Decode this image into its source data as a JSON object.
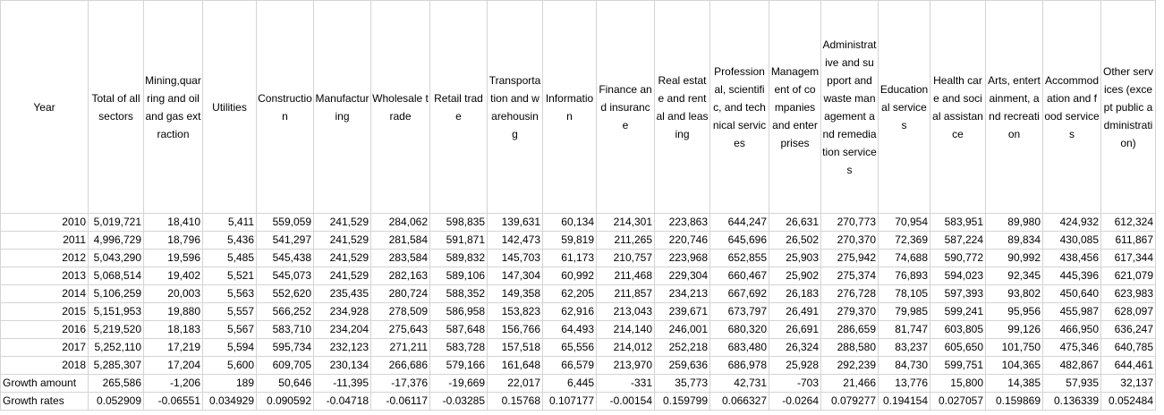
{
  "columns": [
    "Year",
    "Total of all sectors",
    "Mining,quarring and oil and gas extraction",
    "Utilities",
    "Construction",
    "Manufacturing",
    "Wholesale trade",
    "Retail trade",
    "Transportation and warehousing",
    "Information",
    "Finance and insurance",
    "Real estate and rental and leasing",
    "Professional, scientific, and technical services",
    "Management of companies and enterprises",
    "Administrative and support and waste management and remediation services",
    "Educational services",
    "Health care and social assistance",
    "Arts, entertainment, and recreation",
    "Accommodation and food services",
    "Other services (except public administration)"
  ],
  "rows": [
    [
      "2010",
      "5,019,721",
      "18,410",
      "5,411",
      "559,059",
      "241,529",
      "284,062",
      "598,835",
      "139,631",
      "60,134",
      "214,301",
      "223,863",
      "644,247",
      "26,631",
      "270,773",
      "70,954",
      "583,951",
      "89,980",
      "424,932",
      "612,324"
    ],
    [
      "2011",
      "4,996,729",
      "18,796",
      "5,436",
      "541,297",
      "241,529",
      "281,584",
      "591,871",
      "142,473",
      "59,819",
      "211,265",
      "220,746",
      "645,696",
      "26,502",
      "270,370",
      "72,369",
      "587,224",
      "89,834",
      "430,085",
      "611,867"
    ],
    [
      "2012",
      "5,043,290",
      "19,596",
      "5,485",
      "545,438",
      "241,529",
      "283,584",
      "589,832",
      "145,703",
      "61,173",
      "210,757",
      "223,968",
      "652,855",
      "25,903",
      "275,942",
      "74,688",
      "590,772",
      "90,992",
      "438,456",
      "617,344"
    ],
    [
      "2013",
      "5,068,514",
      "19,402",
      "5,521",
      "545,073",
      "241,529",
      "282,163",
      "589,106",
      "147,304",
      "60,992",
      "211,468",
      "229,304",
      "660,467",
      "25,902",
      "275,374",
      "76,893",
      "594,023",
      "92,345",
      "445,396",
      "621,079"
    ],
    [
      "2014",
      "5,106,259",
      "20,003",
      "5,563",
      "552,620",
      "235,435",
      "280,724",
      "588,352",
      "149,358",
      "62,205",
      "211,857",
      "234,213",
      "667,692",
      "26,183",
      "276,728",
      "78,105",
      "597,393",
      "93,802",
      "450,640",
      "623,983"
    ],
    [
      "2015",
      "5,151,953",
      "19,880",
      "5,557",
      "566,252",
      "234,928",
      "278,509",
      "586,958",
      "153,823",
      "62,916",
      "213,043",
      "239,671",
      "673,797",
      "26,491",
      "279,370",
      "79,985",
      "599,241",
      "95,956",
      "455,987",
      "628,097"
    ],
    [
      "2016",
      "5,219,520",
      "18,183",
      "5,567",
      "583,710",
      "234,204",
      "275,643",
      "587,648",
      "156,766",
      "64,493",
      "214,140",
      "246,001",
      "680,320",
      "26,691",
      "286,659",
      "81,747",
      "603,805",
      "99,126",
      "466,950",
      "636,247"
    ],
    [
      "2017",
      "5,252,110",
      "17,219",
      "5,594",
      "595,734",
      "232,123",
      "271,211",
      "583,728",
      "157,518",
      "65,556",
      "214,012",
      "252,218",
      "683,480",
      "26,324",
      "288,580",
      "83,237",
      "605,650",
      "101,750",
      "475,346",
      "640,785"
    ],
    [
      "2018",
      "5,285,307",
      "17,204",
      "5,600",
      "609,705",
      "230,134",
      "266,686",
      "579,166",
      "161,648",
      "66,579",
      "213,970",
      "259,636",
      "686,978",
      "25,928",
      "292,239",
      "84,730",
      "599,751",
      "104,365",
      "482,867",
      "644,461"
    ],
    [
      "Growth amount",
      "265,586",
      "-1,206",
      "189",
      "50,646",
      "-11,395",
      "-17,376",
      "-19,669",
      "22,017",
      "6,445",
      "-331",
      "35,773",
      "42,731",
      "-703",
      "21,466",
      "13,776",
      "15,800",
      "14,385",
      "57,935",
      "32,137"
    ],
    [
      "Growth rates",
      "0.052909",
      "-0.06551",
      "0.034929",
      "0.090592",
      "-0.04718",
      "-0.06117",
      "-0.03285",
      "0.15768",
      "0.107177",
      "-0.00154",
      "0.159799",
      "0.066327",
      "-0.0264",
      "0.079277",
      "0.194154",
      "0.027057",
      "0.159869",
      "0.136339",
      "0.052484"
    ]
  ]
}
